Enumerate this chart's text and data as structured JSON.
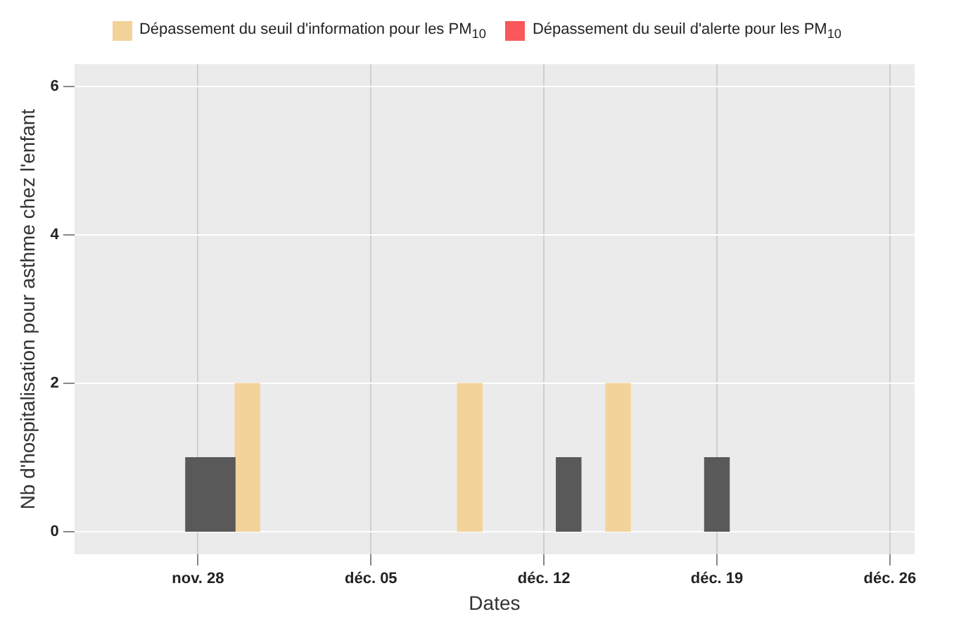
{
  "chart_data": {
    "type": "bar",
    "xlabel": "Dates",
    "ylabel": "Nb d'hospitalisation pour asthme chez l'enfant",
    "xlim": [
      "--11-23",
      "--12-27"
    ],
    "xticks": [
      {
        "value": "--11-28",
        "label": "nov. 28"
      },
      {
        "value": "--12-05",
        "label": "déc. 05"
      },
      {
        "value": "--12-12",
        "label": "déc. 12"
      },
      {
        "value": "--12-19",
        "label": "déc. 19"
      },
      {
        "value": "--12-26",
        "label": "déc. 26"
      }
    ],
    "ylim": [
      -0.3,
      6.3
    ],
    "yticks": [
      0,
      2,
      4,
      6
    ],
    "grid": true,
    "legend": "top",
    "series": [
      {
        "color": "#595959",
        "x": [
          "--11-28",
          "--11-29",
          "--12-13",
          "--12-19"
        ],
        "values": [
          1,
          1,
          1,
          1
        ]
      },
      {
        "name": "Dépassement du seuil d'information pour les PM$_{10}$",
        "color": "#f3d39a",
        "x": [
          "--11-30",
          "--12-09",
          "--12-15"
        ],
        "values": [
          2,
          2,
          2
        ]
      },
      {
        "name": "Dépassement du seuil d'alerte pour les PM$_{10}$",
        "color": "#f8585b"
      }
    ]
  }
}
